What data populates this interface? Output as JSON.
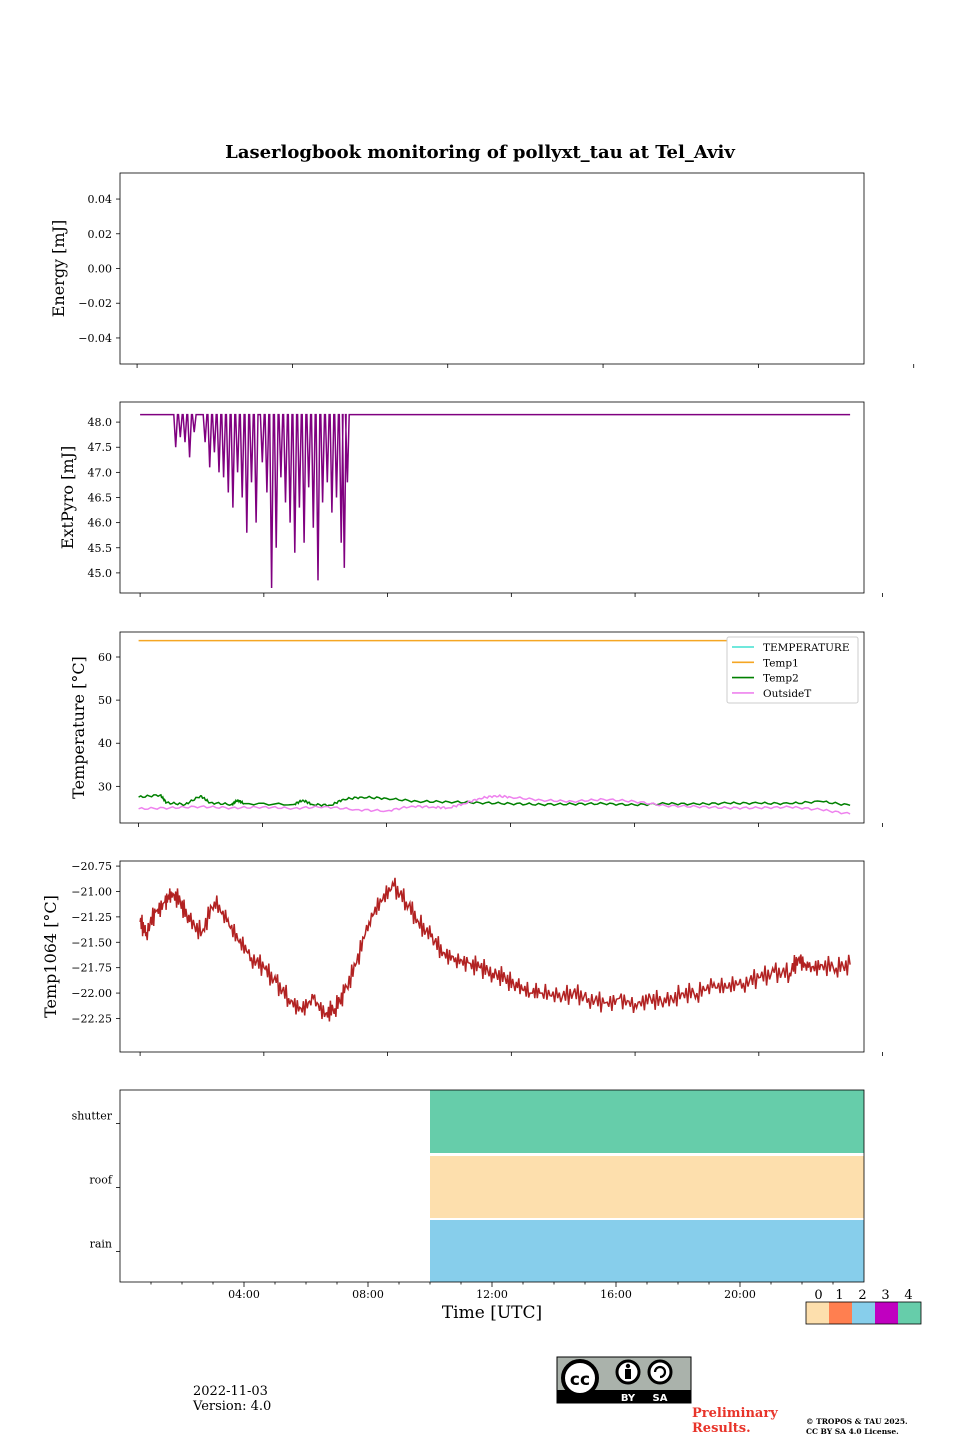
{
  "chart_data": {
    "title": "Laserlogbook monitoring of pollyxt_tau at Tel_Aviv",
    "panels": [
      {
        "type": "line",
        "ylabel": "Energy [mJ]",
        "ylim": [
          -0.055,
          0.055
        ],
        "yticks": [
          "0.04",
          "0.02",
          "0.00",
          "−0.02",
          "−0.04"
        ],
        "yticks_values": [
          0.04,
          0.02,
          0.0,
          -0.02,
          -0.04
        ],
        "series": []
      },
      {
        "type": "line",
        "ylabel": "ExtPyro [mJ]",
        "ylim": [
          44.6,
          48.4
        ],
        "yticks": [
          "48.0",
          "47.5",
          "47.0",
          "46.5",
          "46.0",
          "45.5",
          "45.0"
        ],
        "yticks_values": [
          48.0,
          47.5,
          47.0,
          46.5,
          46.0,
          45.5,
          45.0
        ],
        "series": [
          {
            "color": "#800080",
            "baseline": 48.15,
            "x_start_hour": 1.0,
            "x_end_hour": 23.95,
            "dips": [
              [
                2.15,
                47.5
              ],
              [
                2.3,
                47.7
              ],
              [
                2.45,
                47.6
              ],
              [
                2.6,
                47.3
              ],
              [
                2.75,
                47.8
              ],
              [
                3.1,
                47.6
              ],
              [
                3.25,
                47.1
              ],
              [
                3.4,
                47.4
              ],
              [
                3.55,
                47.0
              ],
              [
                3.7,
                46.9
              ],
              [
                3.85,
                46.6
              ],
              [
                4.0,
                46.3
              ],
              [
                4.15,
                47.0
              ],
              [
                4.3,
                46.5
              ],
              [
                4.45,
                45.8
              ],
              [
                4.6,
                46.8
              ],
              [
                4.75,
                46.0
              ],
              [
                4.95,
                47.2
              ],
              [
                5.1,
                46.6
              ],
              [
                5.25,
                44.7
              ],
              [
                5.4,
                45.5
              ],
              [
                5.55,
                46.9
              ],
              [
                5.7,
                46.4
              ],
              [
                5.85,
                46.0
              ],
              [
                6.0,
                45.4
              ],
              [
                6.15,
                46.3
              ],
              [
                6.3,
                45.6
              ],
              [
                6.45,
                46.7
              ],
              [
                6.6,
                45.9
              ],
              [
                6.75,
                44.85
              ],
              [
                6.9,
                46.4
              ],
              [
                7.05,
                46.8
              ],
              [
                7.2,
                46.2
              ],
              [
                7.35,
                46.5
              ],
              [
                7.5,
                45.6
              ],
              [
                7.6,
                45.1
              ],
              [
                7.7,
                46.8
              ]
            ]
          }
        ]
      },
      {
        "type": "line",
        "ylabel": "Temperature [°C]",
        "ylim": [
          21.5,
          65.8
        ],
        "yticks": [
          "60",
          "50",
          "40",
          "30"
        ],
        "yticks_values": [
          60,
          50,
          40,
          30
        ],
        "legend_position": "upper right",
        "series": [
          {
            "name": "TEMPERATURE",
            "color": "#40e0d0",
            "values": []
          },
          {
            "name": "Temp1",
            "color": "#f5a623",
            "constant": 63.8
          },
          {
            "name": "Temp2",
            "color": "#008000",
            "points": [
              [
                1.0,
                27.5
              ],
              [
                1.7,
                28.0
              ],
              [
                1.9,
                26.2
              ],
              [
                2.5,
                25.8
              ],
              [
                3.0,
                27.8
              ],
              [
                3.3,
                26.2
              ],
              [
                4.0,
                25.8
              ],
              [
                4.2,
                26.8
              ],
              [
                4.4,
                26.0
              ],
              [
                6.0,
                25.8
              ],
              [
                6.3,
                26.8
              ],
              [
                6.6,
                25.8
              ],
              [
                7.2,
                25.6
              ],
              [
                7.6,
                27.0
              ],
              [
                8.2,
                27.5
              ],
              [
                9.0,
                27.2
              ],
              [
                10.0,
                26.5
              ],
              [
                11.0,
                26.4
              ],
              [
                12.0,
                26.2
              ],
              [
                13.0,
                26.0
              ],
              [
                14.0,
                25.8
              ],
              [
                15.0,
                25.9
              ],
              [
                16.0,
                26.0
              ],
              [
                17.0,
                25.7
              ],
              [
                18.0,
                26.0
              ],
              [
                19.0,
                25.9
              ],
              [
                20.0,
                26.1
              ],
              [
                21.0,
                26.1
              ],
              [
                22.0,
                26.0
              ],
              [
                23.0,
                26.5
              ],
              [
                23.95,
                25.6
              ]
            ]
          },
          {
            "name": "OutsideT",
            "color": "#ee82ee",
            "points": [
              [
                1.0,
                24.8
              ],
              [
                2.0,
                25.0
              ],
              [
                3.0,
                25.3
              ],
              [
                4.0,
                25.0
              ],
              [
                5.0,
                25.2
              ],
              [
                6.0,
                24.9
              ],
              [
                7.0,
                25.3
              ],
              [
                8.0,
                24.6
              ],
              [
                9.0,
                24.3
              ],
              [
                9.8,
                25.4
              ],
              [
                10.5,
                25.2
              ],
              [
                11.0,
                25.0
              ],
              [
                11.5,
                26.0
              ],
              [
                12.0,
                27.2
              ],
              [
                12.5,
                27.8
              ],
              [
                13.0,
                27.5
              ],
              [
                14.0,
                26.8
              ],
              [
                15.0,
                26.5
              ],
              [
                16.0,
                27.0
              ],
              [
                17.0,
                26.5
              ],
              [
                18.0,
                25.5
              ],
              [
                19.0,
                25.3
              ],
              [
                20.0,
                25.0
              ],
              [
                21.0,
                25.0
              ],
              [
                22.0,
                25.2
              ],
              [
                23.0,
                24.6
              ],
              [
                23.95,
                23.6
              ]
            ]
          }
        ]
      },
      {
        "type": "line",
        "ylabel": "Temp1064 [°C]",
        "ylim": [
          -22.58,
          -20.7
        ],
        "yticks": [
          "−20.75",
          "−21.00",
          "−21.25",
          "−21.50",
          "−21.75",
          "−22.00",
          "−22.25"
        ],
        "yticks_values": [
          -20.75,
          -21.0,
          -21.25,
          -21.5,
          -21.75,
          -22.0,
          -22.25
        ],
        "series": [
          {
            "color": "#b22222",
            "points": [
              [
                1.0,
                -21.3
              ],
              [
                1.2,
                -21.4
              ],
              [
                1.5,
                -21.2
              ],
              [
                1.8,
                -21.1
              ],
              [
                2.0,
                -21.0
              ],
              [
                2.3,
                -21.1
              ],
              [
                2.6,
                -21.3
              ],
              [
                3.0,
                -21.4
              ],
              [
                3.4,
                -21.1
              ],
              [
                3.8,
                -21.3
              ],
              [
                4.2,
                -21.5
              ],
              [
                4.6,
                -21.65
              ],
              [
                5.0,
                -21.75
              ],
              [
                5.4,
                -21.9
              ],
              [
                5.8,
                -22.05
              ],
              [
                6.2,
                -22.15
              ],
              [
                6.6,
                -22.05
              ],
              [
                7.0,
                -22.2
              ],
              [
                7.3,
                -22.15
              ],
              [
                7.6,
                -22.0
              ],
              [
                8.0,
                -21.7
              ],
              [
                8.4,
                -21.3
              ],
              [
                8.8,
                -21.1
              ],
              [
                9.2,
                -20.95
              ],
              [
                9.6,
                -21.1
              ],
              [
                10.0,
                -21.3
              ],
              [
                10.4,
                -21.45
              ],
              [
                10.8,
                -21.6
              ],
              [
                11.2,
                -21.65
              ],
              [
                11.6,
                -21.7
              ],
              [
                12.0,
                -21.75
              ],
              [
                12.4,
                -21.8
              ],
              [
                12.8,
                -21.85
              ],
              [
                13.2,
                -21.95
              ],
              [
                13.6,
                -22.0
              ],
              [
                14.0,
                -22.0
              ],
              [
                14.5,
                -22.05
              ],
              [
                15.0,
                -22.0
              ],
              [
                15.5,
                -22.05
              ],
              [
                16.0,
                -22.1
              ],
              [
                16.5,
                -22.05
              ],
              [
                17.0,
                -22.1
              ],
              [
                17.5,
                -22.05
              ],
              [
                18.0,
                -22.1
              ],
              [
                18.5,
                -22.0
              ],
              [
                19.0,
                -22.0
              ],
              [
                19.5,
                -21.95
              ],
              [
                20.0,
                -21.95
              ],
              [
                20.5,
                -21.9
              ],
              [
                21.0,
                -21.85
              ],
              [
                21.5,
                -21.8
              ],
              [
                22.0,
                -21.8
              ],
              [
                22.3,
                -21.65
              ],
              [
                22.6,
                -21.75
              ],
              [
                23.0,
                -21.72
              ],
              [
                23.5,
                -21.75
              ],
              [
                23.95,
                -21.72
              ]
            ]
          }
        ]
      },
      {
        "type": "heatmap",
        "xlabel": "Time [UTC]",
        "xticks": [
          "04:00",
          "08:00",
          "12:00",
          "16:00",
          "20:00"
        ],
        "xticks_hours": [
          4,
          8,
          12,
          16,
          20
        ],
        "rows": [
          "shutter",
          "roof",
          "rain"
        ],
        "blocks": [
          {
            "row": "shutter",
            "start_hour": 10.0,
            "end_hour": 24.0,
            "state": 4
          },
          {
            "row": "roof",
            "start_hour": 10.0,
            "end_hour": 24.0,
            "state": 0
          },
          {
            "row": "rain",
            "start_hour": 10.0,
            "end_hour": 24.0,
            "state": 2
          }
        ],
        "colorbar": {
          "labels": [
            "0",
            "1",
            "2",
            "3",
            "4"
          ],
          "colors": [
            "#fddfad",
            "#ff7f50",
            "#87ceeb",
            "#c000c0",
            "#66cdaa"
          ]
        }
      }
    ]
  },
  "footer": {
    "date": "2022-11-03",
    "version": "Version: 4.0",
    "license_badge": {
      "cc": "cc",
      "by": "BY",
      "sa": "SA"
    },
    "preliminary": "Preliminary\nResults.",
    "copyright_line1": "© TROPOS & TAU 2025.",
    "copyright_line2": "CC BY SA 4.0 License."
  }
}
